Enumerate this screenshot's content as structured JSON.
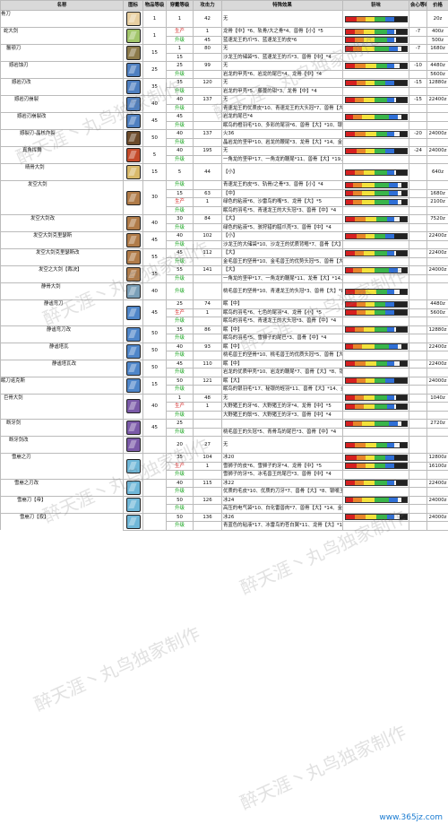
{
  "headers": [
    "名称",
    "图标",
    "物品等级",
    "穿戴等级",
    "攻击力",
    "特殊效果",
    "斩味",
    "会心等级",
    "价格"
  ],
  "levels": [
    "1",
    "1",
    "15",
    "25",
    "35",
    "40",
    "45",
    "50",
    "5",
    "15",
    "30",
    "40",
    "45",
    "55",
    "35",
    "40",
    "45",
    "50",
    "50",
    "50",
    "15",
    "40",
    "45"
  ],
  "weapons": [
    {
      "name": "骨刀",
      "icon_color": "#e8cfa0",
      "rows": [
        {
          "equip": "1",
          "attack": "42",
          "effect": "无",
          "crit": "",
          "price": "20z"
        }
      ]
    },
    {
      "name": "蛇大剑",
      "icon_color": "#a2c66b",
      "rows": [
        {
          "equip": "生产",
          "attack": "1",
          "effect": "龙骨【中】*6、轨骨/大之骨*4、兽骨【小】*5",
          "crit": "-7",
          "price": "400z"
        },
        {
          "equip": "升级",
          "attack": "45",
          "effect": "蓝速龙王的爪*5、蓝速龙王的皮*6",
          "crit": "",
          "price": "500z"
        }
      ]
    },
    {
      "name": "鬣颚刀",
      "icon_color": "#8c7a4a",
      "rows": [
        {
          "equip": "1",
          "attack": "80",
          "effect": "无",
          "crit": "-7",
          "price": "1680z"
        },
        {
          "equip": "15",
          "attack": "",
          "effect": "沙龙王的储袋*5、蓝速龙王的爪*3、兽骨【中】*4",
          "crit": "",
          "price": ""
        }
      ]
    },
    {
      "name": "撼岩蚀刃",
      "icon_color": "#4e7fc0",
      "rows": [
        {
          "equip": "25",
          "attack": "99",
          "effect": "无",
          "crit": "-10",
          "price": "4480z"
        },
        {
          "equip": "升级",
          "attack": "",
          "effect": "岩龙的甲壳*6、岩龙的尾巴*4、龙骨【中】*4",
          "crit": "",
          "price": "5600z"
        }
      ]
    },
    {
      "name": "撼岩刃改",
      "icon_color": "#4e7fc0",
      "rows": [
        {
          "equip": "35",
          "attack": "120",
          "effect": "无",
          "crit": "-15",
          "price": "12880z"
        },
        {
          "equip": "升级",
          "attack": "",
          "effect": "岩龙的甲壳*5、藤蔓的钳*3、龙骨【中】*4",
          "crit": "",
          "price": ""
        }
      ]
    },
    {
      "name": "撼岩刃崩裂",
      "icon_color": "#4e7fc0",
      "rows": [
        {
          "equip": "40",
          "attack": "137",
          "effect": "无",
          "crit": "-15",
          "price": "22400z"
        },
        {
          "equip": "升级",
          "attack": "",
          "effect": "青速龙王的优质皮*10、青速龙王的大头冠*7、兽骨【大】*8、银嘴玉*2",
          "crit": "",
          "price": ""
        }
      ]
    },
    {
      "name": "撼岩刃崩裂改",
      "icon_color": "#4e7fc0",
      "rows": [
        {
          "equip": "45",
          "attack": "",
          "effect": "岩龙的尾巴*4",
          "crit": "",
          "price": ""
        },
        {
          "equip": "升级",
          "attack": "",
          "effect": "眠鸟的橙羽毛*10、多彩的尾羽*6、兽骨【大】*10、银嘴玉*2、岩龙的尾巴",
          "crit": "",
          "price": ""
        }
      ]
    },
    {
      "name": "撼裂刃-晶核炸裂",
      "icon_color": "#6b4a2a",
      "rows": [
        {
          "equip": "40",
          "attack": "137",
          "effect": "火36",
          "crit": "-20",
          "price": "24000z"
        },
        {
          "equip": "升级",
          "attack": "",
          "effect": "晶岩龙的坚甲*10、岩龙的鞭尾*3、龙骨【大】*14、金嘴玉*3",
          "crit": "",
          "price": ""
        }
      ]
    },
    {
      "name": "真角挥舞",
      "icon_color": "#c44a2a",
      "rows": [
        {
          "equip": "40",
          "attack": "195",
          "effect": "无",
          "crit": "-24",
          "price": "24000z"
        },
        {
          "equip": "升级",
          "attack": "",
          "effect": "一角龙的坚甲*17、一角龙的鞭尾*11、兽骨【大】*19、金嘴玉*3",
          "crit": "",
          "price": ""
        }
      ]
    },
    {
      "name": "晴骨大剑",
      "icon_color": "#d8b96a",
      "rows": [
        {
          "equip": "5",
          "attack": "44",
          "effect": "【小】",
          "crit": "",
          "price": "640z"
        }
      ]
    },
    {
      "name": "发空大剑",
      "icon_color": "#b07b48",
      "rows": [
        {
          "equip": "升级",
          "attack": "",
          "effect": "青速龙王的皮*5、轨骨/之骨*3、兽骨【小】*4",
          "crit": "",
          "price": ""
        },
        {
          "equip": "15",
          "attack": "63",
          "effect": "【中】",
          "crit": "",
          "price": "1680z"
        },
        {
          "equip": "生产",
          "attack": "1",
          "effect": "绿色的粘液*6、沙雷鸟的嘴*5、龙骨【大】*5",
          "crit": "",
          "price": "2100z"
        },
        {
          "equip": "升级",
          "attack": "",
          "effect": "眠鸟的羽毛*5、青速龙王的大头冠*3、兽骨【中】*4",
          "crit": "",
          "price": ""
        }
      ]
    },
    {
      "name": "发空大剑改",
      "icon_color": "#b07b48",
      "rows": [
        {
          "equip": "30",
          "attack": "84",
          "effect": "【大】",
          "crit": "",
          "price": "7520z"
        },
        {
          "equip": "升级",
          "attack": "",
          "effect": "绿色的粘液*5、骇狩猎的腊爪壳*3、兽骨【中】*4",
          "crit": "",
          "price": ""
        }
      ]
    },
    {
      "name": "发空大剑克里瑟斯",
      "icon_color": "#b07b48",
      "rows": [
        {
          "equip": "40",
          "attack": "102",
          "effect": "【小】",
          "crit": "",
          "price": "22400z"
        },
        {
          "equip": "升级",
          "attack": "",
          "effect": "沙龙王的大储袋*10、沙龙王的优质背鳍*7、兽骨【大】*8、银嘴玉*2",
          "crit": "",
          "price": ""
        }
      ]
    },
    {
      "name": "发空大剑克里瑟斯改",
      "icon_color": "#b07b48",
      "rows": [
        {
          "equip": "45",
          "attack": "112",
          "effect": "【大】",
          "crit": "",
          "price": "22400z"
        },
        {
          "equip": "升级",
          "attack": "",
          "effect": "金毛兽王的坚骨*10、金毛兽王的优势头冠*5、兽骨【大】*8、银嘴玉*2、沙雷鸟的喙嘴*4",
          "crit": "",
          "price": ""
        }
      ]
    },
    {
      "name": "发空之大剑【裁决】",
      "icon_color": "#b07b48",
      "rows": [
        {
          "equip": "55",
          "attack": "141",
          "effect": "【大】",
          "crit": "",
          "price": "24000z"
        },
        {
          "equip": "升级",
          "attack": "",
          "effect": "一角龙的坚甲*17、一角龙的鞭尾*11、龙骨【大】*14、金嘴玉*3",
          "crit": "",
          "price": ""
        }
      ]
    },
    {
      "name": "静骨大剑",
      "icon_color": "#7a9fb8",
      "rows": [
        {
          "equip": "升级",
          "attack": "",
          "effect": "桃毛兽王的坚骨*10、青速龙王的头冠*3、兽骨【大】*8、银嘴玉*2",
          "crit": "",
          "price": ""
        }
      ]
    },
    {
      "name": "静谧弯刀",
      "icon_color": "#4f86c9",
      "rows": [
        {
          "equip": "25",
          "attack": "74",
          "effect": "眠【中】",
          "crit": "",
          "price": "4480z"
        },
        {
          "equip": "生产",
          "attack": "1",
          "effect": "眠鸟的羽毛*6、七色的尾羽*4、龙骨【小】*5",
          "crit": "",
          "price": "5600z"
        },
        {
          "equip": "升级",
          "attack": "",
          "effect": "眠鸟的羽毛*5、青速龙王的大头冠*3、兽骨【中】*4",
          "crit": "",
          "price": ""
        }
      ]
    },
    {
      "name": "静谧弯刀改",
      "icon_color": "#4f86c9",
      "rows": [
        {
          "equip": "35",
          "attack": "86",
          "effect": "眠【中】",
          "crit": "",
          "price": "12880z"
        },
        {
          "equip": "升级",
          "attack": "",
          "effect": "眠鸟的羽毛*5、雪狮子的尾巴*3、兽骨【中】*4",
          "crit": "",
          "price": ""
        }
      ]
    },
    {
      "name": "静谧塔瓦",
      "icon_color": "#4f86c9",
      "rows": [
        {
          "equip": "40",
          "attack": "93",
          "effect": "眠【中】",
          "crit": "",
          "price": "22400z"
        },
        {
          "equip": "升级",
          "attack": "",
          "effect": "桃毛兽王的坚骨*10、桃毛兽王的优质头冠*5、兽骨【大】*8、银嘴玉*2、七彩的尾羽*4",
          "crit": "",
          "price": ""
        }
      ]
    },
    {
      "name": "静谧塔瓦改",
      "icon_color": "#4f86c9",
      "rows": [
        {
          "equip": "45",
          "attack": "110",
          "effect": "眠【中】",
          "crit": "",
          "price": "22400z"
        },
        {
          "equip": "升级",
          "attack": "",
          "effect": "岩龙的优质甲壳*10、岩龙的鞭尾*7、兽骨【大】*8、银嘴玉*2、七彩的尾羽*4",
          "crit": "",
          "price": ""
        }
      ]
    },
    {
      "name": "眠刀诺克斯",
      "icon_color": "#4f86c9",
      "rows": [
        {
          "equip": "50",
          "attack": "121",
          "effect": "眠【大】",
          "crit": "",
          "price": "24000z"
        },
        {
          "equip": "升级",
          "attack": "",
          "effect": "眠鸟的银羽毛*17、秘银的蛭羽*11、兽骨【大】*14、金嘴玉*3",
          "crit": "",
          "price": ""
        }
      ]
    },
    {
      "name": "巨骨大剑",
      "icon_color": "#7b5aa8",
      "rows": [
        {
          "equip": "1",
          "attack": "48",
          "effect": "无",
          "crit": "",
          "price": "1040z"
        },
        {
          "equip": "生产",
          "attack": "1",
          "effect": "大野猪王的牙*6、大野猪王的牙*4、龙骨【中】*5",
          "crit": "",
          "price": ""
        },
        {
          "equip": "升级",
          "attack": "",
          "effect": "大野猪王的鬃*5、大野猪王的牙*3、兽骨【中】*4",
          "crit": "",
          "price": ""
        }
      ]
    },
    {
      "name": "断牙剑",
      "icon_color": "#7b5aa8",
      "rows": [
        {
          "equip": "25",
          "attack": "",
          "effect": "",
          "crit": "",
          "price": "2720z"
        },
        {
          "equip": "升级",
          "attack": "",
          "effect": "桃毛兽王的头冠*5、青骨鸟的尾巴*3、兽骨【中】*4",
          "crit": "",
          "price": ""
        }
      ]
    },
    {
      "name": "断牙剑改",
      "icon_color": "#7b5aa8",
      "rows": [
        {
          "equip": "20",
          "attack": "27",
          "effect": "无",
          "crit": "",
          "price": ""
        }
      ]
    },
    {
      "name": "雪崩之刃",
      "icon_color": "#6fb7d8",
      "rows": [
        {
          "equip": "35",
          "attack": "104",
          "effect": "冰20",
          "crit": "",
          "price": "12800z"
        },
        {
          "equip": "生产",
          "attack": "1",
          "effect": "雪狮子的皮*6、雪狮子的牙*4、龙骨【中】*5",
          "crit": "",
          "price": "16100z"
        },
        {
          "equip": "升级",
          "attack": "",
          "effect": "雪狮子的牙*5、冰毛兽王的尾巴*3、兽骨【中】*4",
          "crit": "",
          "price": ""
        }
      ]
    },
    {
      "name": "雪崩之刃改",
      "icon_color": "#6fb7d8",
      "rows": [
        {
          "equip": "40",
          "attack": "115",
          "effect": "冰22",
          "crit": "",
          "price": "22400z"
        },
        {
          "equip": "升级",
          "attack": "",
          "effect": "优质的毛皮*10、优质的刀牙*7、兽骨【大】*8、银嘴玉*2",
          "crit": "",
          "price": ""
        }
      ]
    },
    {
      "name": "雪崩刀【帝】",
      "icon_color": "#6fb7d8",
      "rows": [
        {
          "equip": "50",
          "attack": "126",
          "effect": "冰24",
          "crit": "",
          "price": "24000z"
        },
        {
          "equip": "升级",
          "attack": "",
          "effect": "高压的电气袋*10、白化雷兽肉*7、兽骨【大】*14、金嘴玉*3",
          "crit": "",
          "price": ""
        }
      ]
    },
    {
      "name": "雪崩刀【寂】",
      "icon_color": "#6fb7d8",
      "rows": [
        {
          "equip": "50",
          "attack": "136",
          "effect": "冰26",
          "crit": "",
          "price": "24000z"
        },
        {
          "equip": "升级",
          "attack": "",
          "effect": "青蓝色的粘液*17、冰雷鸟的苍白翼*11、龙骨【大】*14、金嘴玉*3",
          "crit": "",
          "price": ""
        }
      ]
    }
  ],
  "watermark_text": "醉天涯丶丸鸟独家制作",
  "site_logo": "www.365jz.com",
  "colors": {
    "header_bg": "#d9d9d9",
    "upgrade": "#13a31a",
    "produce": "#d41c1c",
    "sharpness": [
      "#d62020",
      "#e8852a",
      "#f2e23b",
      "#39b54a",
      "#2f6fd6",
      "#f2f2f2"
    ]
  }
}
